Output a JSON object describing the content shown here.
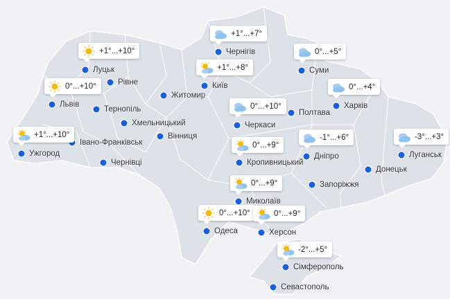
{
  "colors": {
    "land": "#dde2e8",
    "water": "#f1f2f4",
    "dot": "#1a5fd8",
    "sun": "#f5b90f",
    "cloud": "#8fc3ee"
  },
  "cities": [
    {
      "name": "Луцьк",
      "forecast": "+1°...+10°",
      "icon": "sun"
    },
    {
      "name": "Рівне"
    },
    {
      "name": "Львів",
      "forecast": "0°...+10°",
      "icon": "sun"
    },
    {
      "name": "Тернопіль"
    },
    {
      "name": "Хмельницький"
    },
    {
      "name": "Житомир"
    },
    {
      "name": "Київ",
      "forecast": "+1°...+8°",
      "icon": "partly-cloudy"
    },
    {
      "name": "Чернігів",
      "forecast": "+1°...+7°",
      "icon": "cloud"
    },
    {
      "name": "Суми",
      "forecast": "0°...+5°",
      "icon": "cloud"
    },
    {
      "name": "Харків",
      "forecast": "0°...+4°",
      "icon": "cloud"
    },
    {
      "name": "Полтава"
    },
    {
      "name": "Черкаси",
      "forecast": "0°...+10°",
      "icon": "cloud"
    },
    {
      "name": "Вінниця"
    },
    {
      "name": "Івано-Франківськ"
    },
    {
      "name": "Ужгород",
      "forecast": "+1°...+10°",
      "icon": "partly-cloudy"
    },
    {
      "name": "Чернівці"
    },
    {
      "name": "Кропивницький",
      "forecast": "0°...+9°",
      "icon": "partly-cloudy"
    },
    {
      "name": "Дніпро",
      "forecast": "-1°...+6°",
      "icon": "cloud"
    },
    {
      "name": "Донецьк"
    },
    {
      "name": "Луганськ",
      "forecast": "-3°...+3°",
      "icon": "cloud"
    },
    {
      "name": "Запоріжжя"
    },
    {
      "name": "Миколаїв",
      "forecast": "0°...+9°",
      "icon": "partly-cloudy"
    },
    {
      "name": "Одеса",
      "forecast": "0°...+10°",
      "icon": "sun"
    },
    {
      "name": "Херсон",
      "forecast": "0°...+9°",
      "icon": "partly-cloudy"
    },
    {
      "name": "Сімферополь",
      "forecast": "-2°...+5°",
      "icon": "partly-cloudy"
    },
    {
      "name": "Севастополь"
    }
  ]
}
